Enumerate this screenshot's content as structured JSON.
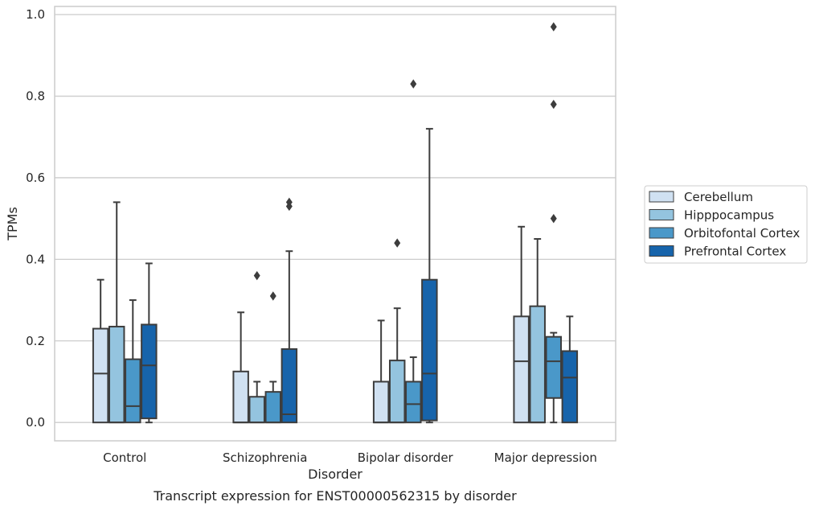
{
  "chart_data": {
    "type": "box",
    "xlabel": "Disorder",
    "ylabel": "TPMs",
    "caption": "Transcript expression for ENST00000562315 by disorder",
    "ylim": [
      -0.045,
      1.02
    ],
    "yticks": [
      "0.0",
      "0.2",
      "0.4",
      "0.6",
      "0.8",
      "1.0"
    ],
    "ytick_values": [
      0.0,
      0.2,
      0.4,
      0.6,
      0.8,
      1.0
    ],
    "grid": true,
    "legend_position": "right",
    "categories": [
      "Control",
      "Schizophrenia",
      "Bipolar disorder",
      "Major depression"
    ],
    "series": [
      {
        "name": "Cerebellum",
        "color": "#d0e1f2",
        "boxes": [
          {
            "min": 0.0,
            "q1": 0.0,
            "median": 0.12,
            "q3": 0.23,
            "max": 0.35,
            "outliers": []
          },
          {
            "min": 0.0,
            "q1": 0.0,
            "median": 0.0,
            "q3": 0.125,
            "max": 0.27,
            "outliers": []
          },
          {
            "min": 0.0,
            "q1": 0.0,
            "median": 0.0,
            "q3": 0.1,
            "max": 0.25,
            "outliers": []
          },
          {
            "min": 0.0,
            "q1": 0.0,
            "median": 0.15,
            "q3": 0.26,
            "max": 0.48,
            "outliers": []
          }
        ]
      },
      {
        "name": "Hipppocampus",
        "color": "#94c4df",
        "boxes": [
          {
            "min": 0.0,
            "q1": 0.0,
            "median": 0.0,
            "q3": 0.235,
            "max": 0.54,
            "outliers": []
          },
          {
            "min": 0.0,
            "q1": 0.0,
            "median": 0.0,
            "q3": 0.063,
            "max": 0.1,
            "outliers": [
              0.36
            ]
          },
          {
            "min": 0.0,
            "q1": 0.0,
            "median": 0.0,
            "q3": 0.152,
            "max": 0.28,
            "outliers": [
              0.44
            ]
          },
          {
            "min": 0.0,
            "q1": 0.0,
            "median": 0.0,
            "q3": 0.285,
            "max": 0.45,
            "outliers": []
          }
        ]
      },
      {
        "name": "Orbitofontal Cortex",
        "color": "#4a98c9",
        "boxes": [
          {
            "min": 0.0,
            "q1": 0.0,
            "median": 0.04,
            "q3": 0.155,
            "max": 0.3,
            "outliers": []
          },
          {
            "min": 0.0,
            "q1": 0.0,
            "median": 0.0,
            "q3": 0.075,
            "max": 0.1,
            "outliers": [
              0.31
            ]
          },
          {
            "min": 0.0,
            "q1": 0.0,
            "median": 0.045,
            "q3": 0.1,
            "max": 0.16,
            "outliers": [
              0.83
            ]
          },
          {
            "min": 0.0,
            "q1": 0.06,
            "median": 0.15,
            "q3": 0.21,
            "max": 0.22,
            "outliers": [
              0.5,
              0.78,
              0.97
            ]
          }
        ]
      },
      {
        "name": "Prefrontal Cortex",
        "color": "#1764ab",
        "boxes": [
          {
            "min": 0.0,
            "q1": 0.01,
            "median": 0.14,
            "q3": 0.24,
            "max": 0.39,
            "outliers": []
          },
          {
            "min": 0.0,
            "q1": 0.0,
            "median": 0.02,
            "q3": 0.18,
            "max": 0.42,
            "outliers": [
              0.53,
              0.54
            ]
          },
          {
            "min": 0.0,
            "q1": 0.005,
            "median": 0.12,
            "q3": 0.35,
            "max": 0.72,
            "outliers": []
          },
          {
            "min": 0.0,
            "q1": 0.0,
            "median": 0.11,
            "q3": 0.175,
            "max": 0.26,
            "outliers": []
          }
        ]
      }
    ]
  }
}
